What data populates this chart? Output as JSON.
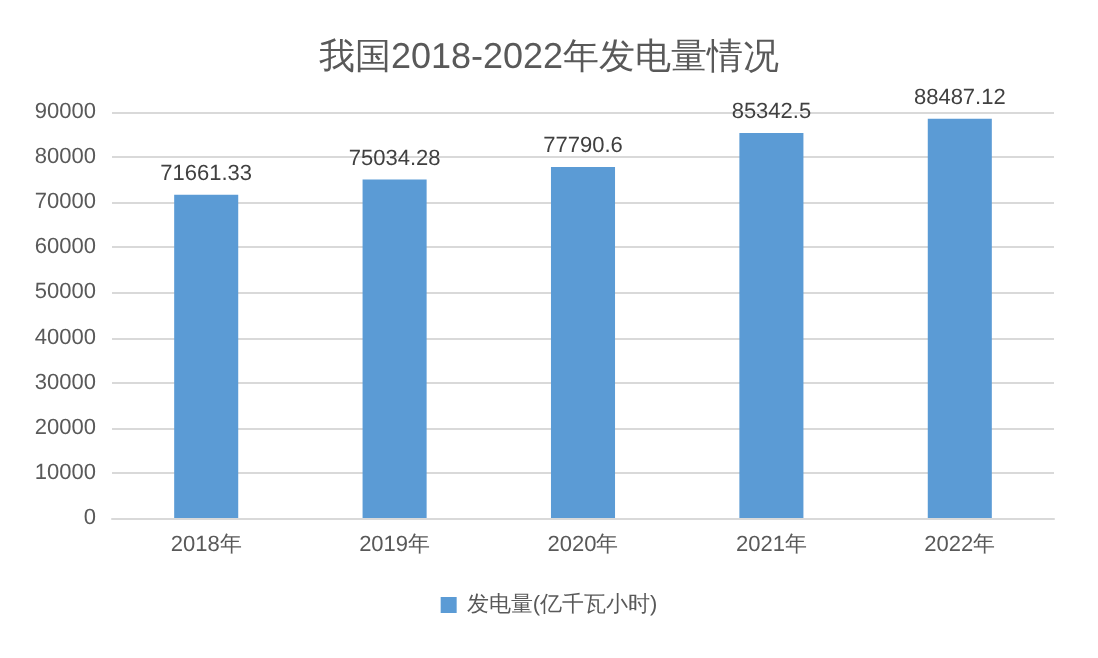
{
  "chart_data": {
    "type": "bar",
    "title": "我国2018-2022年发电量情况",
    "categories": [
      "2018年",
      "2019年",
      "2020年",
      "2021年",
      "2022年"
    ],
    "series": [
      {
        "name": "发电量(亿千瓦小时)",
        "color": "#5b9bd5",
        "values": [
          71661.33,
          75034.28,
          77790.6,
          85342.5,
          88487.12
        ]
      }
    ],
    "ylim": [
      0,
      90000
    ],
    "yticks": [
      0,
      10000,
      20000,
      30000,
      40000,
      50000,
      60000,
      70000,
      80000,
      90000
    ],
    "grid": "y",
    "legend": "bottom",
    "data_labels": true
  }
}
